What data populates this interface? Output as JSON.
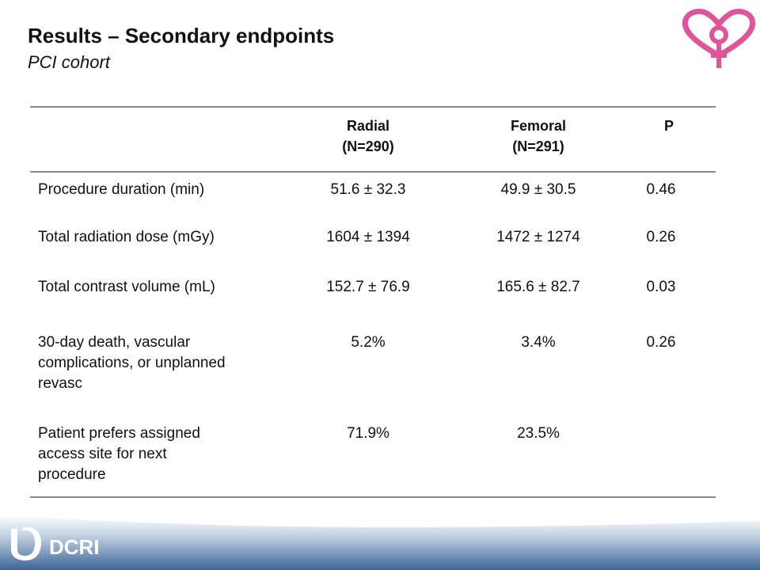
{
  "slide": {
    "title": "Results – Secondary endpoints",
    "subtitle": "PCI cohort"
  },
  "table": {
    "headers": {
      "radial_line1": "Radial",
      "radial_line2": "(N=290)",
      "femoral_line1": "Femoral",
      "femoral_line2": "(N=291)",
      "p": "P"
    },
    "rows": [
      {
        "label": "Procedure duration (min)",
        "radial": "51.6 ± 32.3",
        "femoral": "49.9 ± 30.5",
        "p": "0.46"
      },
      {
        "label": "Total radiation dose (mGy)",
        "radial": "1604 ± 1394",
        "femoral": "1472 ± 1274",
        "p": "0.26"
      },
      {
        "label": "Total contrast volume (mL)",
        "radial": "152.7 ± 76.9",
        "femoral": "165.6 ± 82.7",
        "p": "0.03"
      },
      {
        "label_lines": [
          "30-day death, vascular",
          "complications, or unplanned",
          "revasc"
        ],
        "radial": "5.2%",
        "femoral": "3.4%",
        "p": "0.26"
      },
      {
        "label_lines": [
          "Patient prefers assigned",
          "access site for next",
          "procedure"
        ],
        "radial": "71.9%",
        "femoral": "23.5%",
        "p": ""
      }
    ]
  },
  "footer": {
    "logo_text": "DCRI"
  },
  "colors": {
    "logo_pink": "#e0559a",
    "rule_gray": "#8a8a8a",
    "footer_blue": "#4a6e9c"
  },
  "icons": {
    "top_right": "heart-venus-logo-icon",
    "bottom_left": "duke-d-logo-icon"
  }
}
